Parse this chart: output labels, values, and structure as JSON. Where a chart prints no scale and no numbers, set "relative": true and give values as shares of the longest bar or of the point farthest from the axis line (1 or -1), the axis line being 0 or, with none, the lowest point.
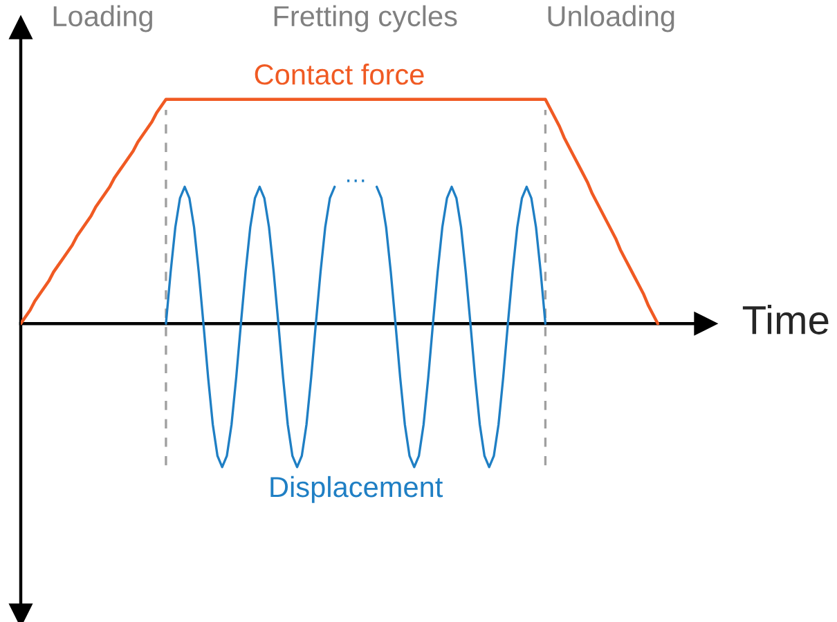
{
  "chart_data": {
    "type": "line",
    "relative": true,
    "xlabel": "Time",
    "legend": false,
    "categories": [
      null,
      null,
      null,
      null,
      null,
      null,
      null,
      null,
      null,
      null,
      null,
      null,
      null,
      null,
      null,
      null,
      null,
      null,
      null,
      null,
      null,
      null,
      null,
      null,
      null,
      null,
      null,
      null,
      null,
      null,
      null,
      null,
      null,
      null,
      null,
      null,
      null,
      null,
      null,
      null,
      null,
      null,
      null,
      null,
      null,
      null,
      null,
      null,
      null,
      null,
      null,
      null,
      null,
      null,
      null,
      null,
      null,
      null,
      null,
      null,
      null,
      null,
      null,
      null,
      null,
      null,
      null,
      null,
      null,
      null,
      null,
      null,
      null,
      null,
      null,
      null,
      null,
      null,
      null,
      null,
      null,
      null,
      null,
      null,
      null,
      null,
      null,
      null,
      null,
      null,
      null,
      null,
      null,
      null,
      null,
      null,
      null,
      null,
      null,
      null,
      null,
      null,
      null,
      null,
      null,
      null,
      null,
      null,
      null,
      null,
      null,
      null,
      null,
      null,
      null,
      null,
      null,
      null,
      null,
      null,
      null,
      null,
      null,
      null,
      null,
      null,
      null,
      null,
      null,
      null,
      null,
      null,
      null,
      null,
      null,
      null,
      null
    ],
    "series": [
      {
        "name": "Contact force",
        "color": "#f05a23",
        "values": [
          0,
          0.03,
          0.06,
          0.1,
          0.13,
          0.16,
          0.19,
          0.23,
          0.26,
          0.29,
          0.32,
          0.35,
          0.39,
          0.42,
          0.45,
          0.48,
          0.52,
          0.55,
          0.58,
          0.61,
          0.65,
          0.68,
          0.71,
          0.74,
          0.77,
          0.81,
          0.84,
          0.87,
          0.9,
          0.94,
          0.97,
          1,
          1,
          1,
          1,
          1,
          1,
          1,
          1,
          1,
          1,
          1,
          1,
          1,
          1,
          1,
          1,
          1,
          1,
          1,
          1,
          1,
          1,
          1,
          1,
          1,
          1,
          1,
          1,
          1,
          1,
          1,
          1,
          1,
          1,
          1,
          1,
          1,
          1,
          1,
          1,
          1,
          1,
          1,
          1,
          1,
          1,
          1,
          1,
          1,
          1,
          1,
          1,
          1,
          1,
          1,
          1,
          1,
          1,
          1,
          1,
          1,
          1,
          1,
          1,
          1,
          1,
          1,
          1,
          1,
          1,
          1,
          1,
          1,
          1,
          1,
          1,
          1,
          1,
          1,
          1,
          1,
          1,
          0.96,
          0.92,
          0.88,
          0.83,
          0.79,
          0.75,
          0.71,
          0.67,
          0.63,
          0.58,
          0.54,
          0.5,
          0.46,
          0.42,
          0.38,
          0.33,
          0.29,
          0.25,
          0.21,
          0.17,
          0.13,
          0.08,
          0.04,
          0
        ]
      },
      {
        "name": "Displacement",
        "color": "#1f7fc4",
        "values": [
          null,
          null,
          null,
          null,
          null,
          null,
          null,
          null,
          null,
          null,
          null,
          null,
          null,
          null,
          null,
          null,
          null,
          null,
          null,
          null,
          null,
          null,
          null,
          null,
          null,
          null,
          null,
          null,
          null,
          null,
          null,
          0,
          0.23,
          0.43,
          0.56,
          0.61,
          0.56,
          0.43,
          0.23,
          0,
          -0.24,
          -0.45,
          -0.59,
          -0.64,
          -0.59,
          -0.45,
          -0.24,
          0,
          0.23,
          0.43,
          0.56,
          0.61,
          0.56,
          0.43,
          0.23,
          0,
          -0.24,
          -0.45,
          -0.59,
          -0.64,
          -0.59,
          -0.45,
          -0.24,
          0,
          0.23,
          0.43,
          0.56,
          0.61,
          null,
          null,
          null,
          null,
          null,
          null,
          null,
          null,
          0.61,
          0.56,
          0.43,
          0.23,
          0,
          -0.24,
          -0.45,
          -0.59,
          -0.64,
          -0.59,
          -0.45,
          -0.24,
          0,
          0.23,
          0.43,
          0.56,
          0.61,
          0.56,
          0.43,
          0.23,
          0,
          -0.24,
          -0.45,
          -0.59,
          -0.64,
          -0.59,
          -0.45,
          -0.24,
          0,
          0.23,
          0.43,
          0.56,
          0.61,
          0.56,
          0.43,
          0.23,
          0,
          null,
          null,
          null,
          null,
          null,
          null,
          null,
          null,
          null,
          null,
          null,
          null,
          null,
          null,
          null,
          null,
          null,
          null,
          null,
          null,
          null,
          null,
          null,
          null
        ]
      }
    ],
    "annotations": [
      "Loading",
      "Fretting cycles",
      "Unloading",
      "…"
    ]
  }
}
